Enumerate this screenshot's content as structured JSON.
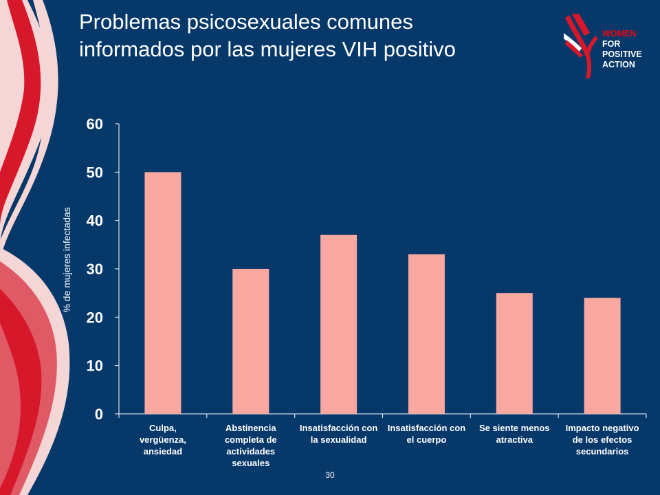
{
  "slide": {
    "title_line1": "Problemas psicosexuales comunes",
    "title_line2": "informados por las mujeres VIH positivo",
    "page_number": "30"
  },
  "logo": {
    "line1": "WOMEN",
    "line2": "FOR",
    "line3": "POSITIVE",
    "line4": "ACTION"
  },
  "colors": {
    "background": "#06386a",
    "bar": "#f8a8a0",
    "ribbon_red": "#d7182a",
    "ribbon_pink": "#f4d6d6"
  },
  "chart_data": {
    "type": "bar",
    "title": "",
    "xlabel": "",
    "ylabel": "% de mujeres infectadas",
    "ylim": [
      0,
      60
    ],
    "yticks": [
      "0",
      "10",
      "20",
      "30",
      "40",
      "50",
      "60"
    ],
    "grid": false,
    "categories": [
      [
        "Culpa,",
        "vergüenza,",
        "ansiedad"
      ],
      [
        "Abstinencia",
        "completa de",
        "actividades",
        "sexuales"
      ],
      [
        "Insatisfacción con",
        "la sexualidad"
      ],
      [
        "Insatisfacción con",
        "el cuerpo"
      ],
      [
        "Se siente menos",
        "atractiva"
      ],
      [
        "Impacto negativo",
        "de los efectos",
        "secundarios"
      ]
    ],
    "values": [
      50,
      30,
      37,
      33,
      25,
      24
    ]
  }
}
